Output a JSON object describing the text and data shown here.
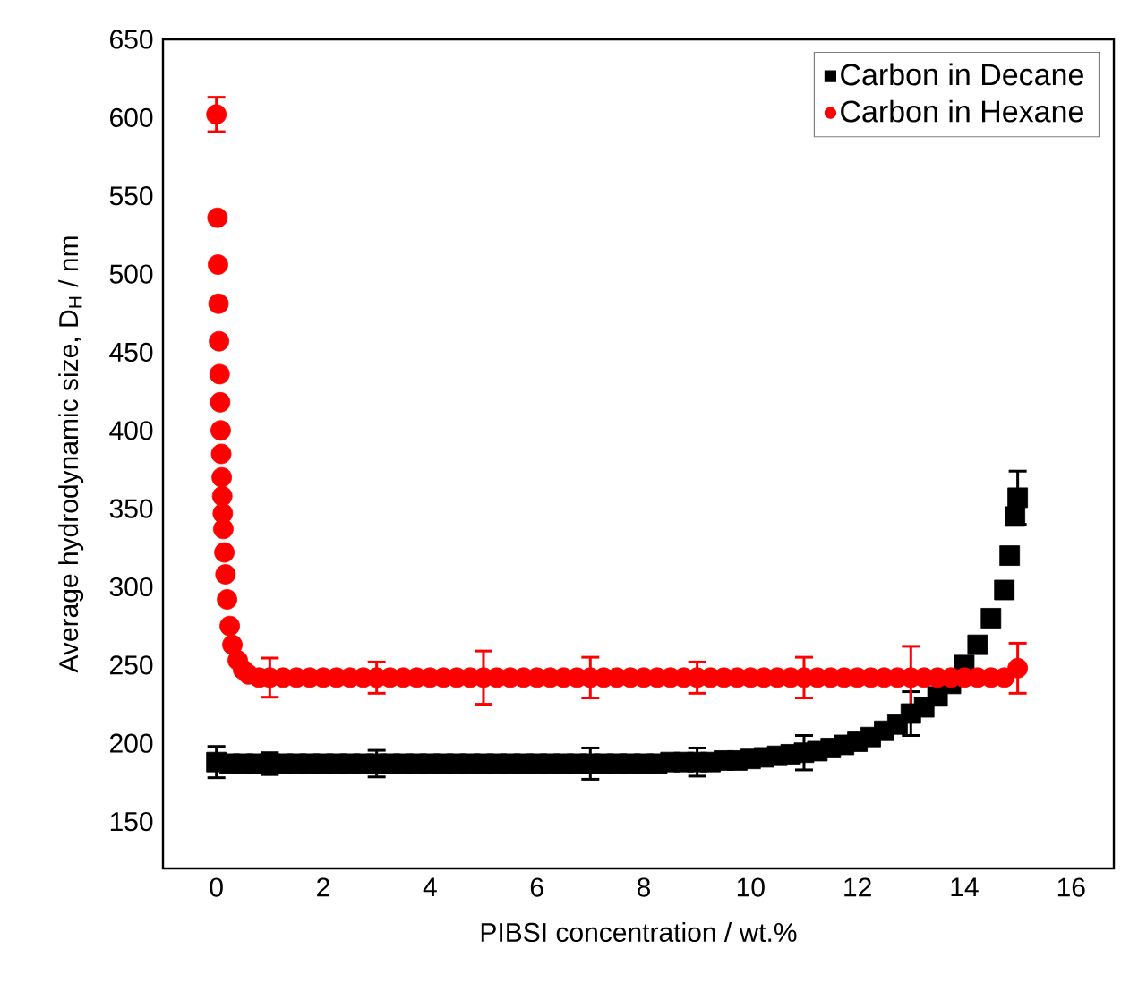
{
  "chart_data": {
    "type": "scatter",
    "xlabel": "PIBSI concentration / wt.%",
    "ylabel": "Average hydrodynamic size, D$_{H}$ / nm",
    "xlim": [
      -1,
      16.8
    ],
    "ylim": [
      120,
      650
    ],
    "xticks": [
      0,
      2,
      4,
      6,
      8,
      10,
      12,
      14,
      16
    ],
    "yticks": [
      150,
      200,
      250,
      300,
      350,
      400,
      450,
      500,
      550,
      600,
      650
    ],
    "grid": false,
    "legend": "top right",
    "series": [
      {
        "name": "Carbon in Decane",
        "color": "#000000",
        "marker": "square",
        "x": [
          0,
          0.25,
          0.5,
          0.75,
          1,
          1.25,
          1.5,
          1.75,
          2,
          2.25,
          2.5,
          2.75,
          3,
          3.25,
          3.5,
          3.75,
          4,
          4.25,
          4.5,
          4.75,
          5,
          5.25,
          5.5,
          5.75,
          6,
          6.25,
          6.5,
          6.75,
          7,
          7.25,
          7.5,
          7.75,
          8,
          8.25,
          8.5,
          8.75,
          9,
          9.25,
          9.5,
          9.75,
          10,
          10.25,
          10.5,
          10.75,
          11,
          11.25,
          11.5,
          11.75,
          12,
          12.25,
          12.5,
          12.75,
          13,
          13.25,
          13.5,
          13.75,
          14,
          14.25,
          14.5,
          14.75,
          14.85,
          14.95,
          15
        ],
        "values": [
          188,
          187,
          187,
          187,
          187,
          187,
          187,
          187,
          187,
          187,
          187,
          187,
          187,
          187,
          187,
          187,
          187,
          187,
          187,
          187,
          187,
          187,
          187,
          187,
          187,
          187,
          187,
          187,
          187,
          187,
          187,
          187,
          187,
          187,
          188,
          188,
          188,
          188,
          189,
          189,
          190,
          191,
          192,
          193,
          194,
          195,
          197,
          199,
          201,
          204,
          208,
          212,
          219,
          223,
          230,
          238,
          250,
          263,
          280,
          298,
          320,
          345,
          357
        ],
        "errors": [
          10,
          null,
          null,
          null,
          7,
          null,
          null,
          null,
          null,
          null,
          null,
          null,
          8.5,
          null,
          null,
          null,
          null,
          null,
          null,
          null,
          3,
          null,
          null,
          null,
          null,
          null,
          null,
          null,
          10,
          null,
          null,
          null,
          null,
          null,
          null,
          null,
          9,
          null,
          null,
          null,
          null,
          null,
          null,
          null,
          11,
          null,
          null,
          null,
          null,
          null,
          null,
          null,
          14,
          null,
          null,
          null,
          null,
          null,
          null,
          null,
          null,
          null,
          17
        ]
      },
      {
        "name": "Carbon in Hexane",
        "color": "#ff0000",
        "marker": "circle",
        "x": [
          0,
          0.02,
          0.03,
          0.04,
          0.05,
          0.06,
          0.07,
          0.08,
          0.09,
          0.1,
          0.11,
          0.12,
          0.13,
          0.15,
          0.17,
          0.2,
          0.25,
          0.3,
          0.4,
          0.5,
          0.6,
          0.8,
          1,
          1.25,
          1.5,
          1.75,
          2,
          2.25,
          2.5,
          2.75,
          3,
          3.25,
          3.5,
          3.75,
          4,
          4.25,
          4.5,
          4.75,
          5,
          5.25,
          5.5,
          5.75,
          6,
          6.25,
          6.5,
          6.75,
          7,
          7.25,
          7.5,
          7.75,
          8,
          8.25,
          8.5,
          8.75,
          9,
          9.25,
          9.5,
          9.75,
          10,
          10.25,
          10.5,
          10.75,
          11,
          11.25,
          11.5,
          11.75,
          12,
          12.25,
          12.5,
          12.75,
          13,
          13.25,
          13.5,
          13.75,
          14,
          14.25,
          14.5,
          14.75,
          15
        ],
        "values": [
          602,
          536,
          506,
          481,
          457,
          436,
          418,
          400,
          385,
          370,
          358,
          347,
          337,
          322,
          308,
          292,
          275,
          263,
          253,
          247,
          244,
          242,
          242,
          242,
          242,
          242,
          242,
          242,
          242,
          242,
          242,
          242,
          242,
          242,
          242,
          242,
          242,
          242,
          242,
          242,
          242,
          242,
          242,
          242,
          242,
          242,
          242,
          242,
          242,
          242,
          242,
          242,
          242,
          242,
          242,
          242,
          242,
          242,
          242,
          242,
          242,
          242,
          242,
          242,
          242,
          242,
          242,
          242,
          242,
          242,
          242,
          242,
          242,
          242,
          242,
          242,
          242,
          242,
          248
        ],
        "errors": [
          11,
          null,
          null,
          null,
          null,
          null,
          null,
          null,
          null,
          null,
          null,
          null,
          null,
          null,
          null,
          null,
          null,
          null,
          null,
          null,
          null,
          null,
          12.5,
          null,
          null,
          null,
          null,
          null,
          null,
          null,
          10,
          null,
          null,
          null,
          null,
          null,
          null,
          null,
          17,
          null,
          null,
          null,
          null,
          null,
          null,
          null,
          13,
          null,
          null,
          null,
          null,
          null,
          null,
          null,
          10,
          null,
          null,
          null,
          null,
          null,
          null,
          null,
          13,
          null,
          null,
          null,
          null,
          null,
          null,
          null,
          20,
          null,
          null,
          null,
          null,
          null,
          null,
          null,
          16
        ]
      }
    ]
  }
}
